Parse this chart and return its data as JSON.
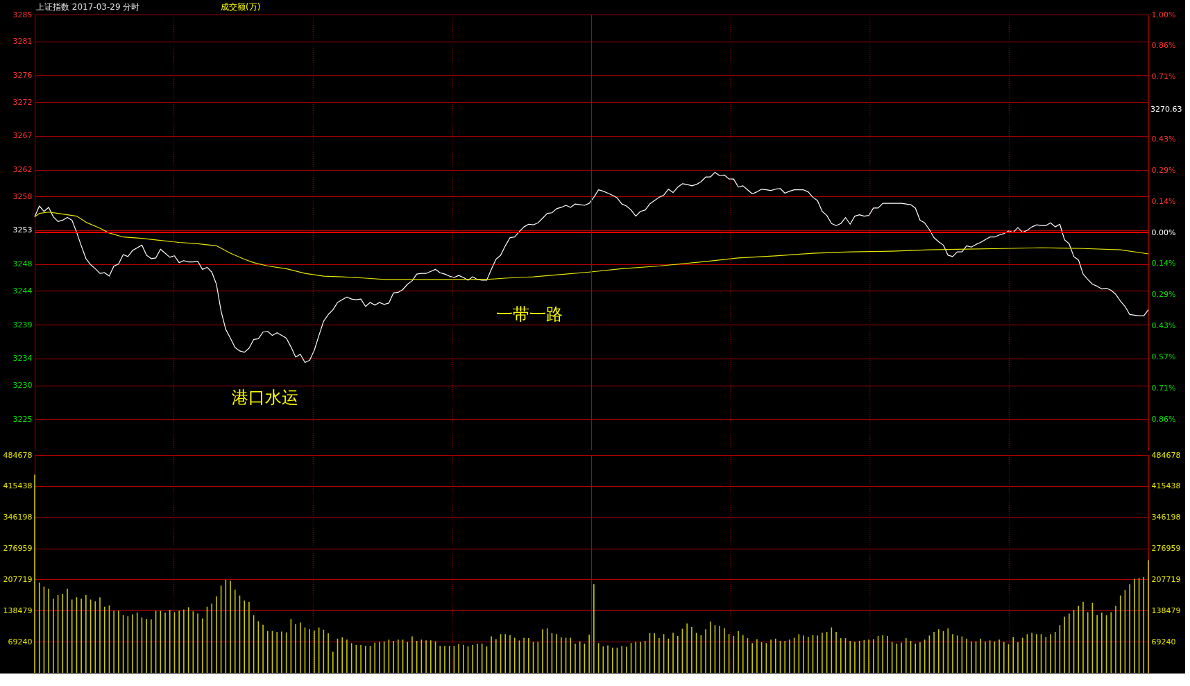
{
  "chart_data": [
    {
      "type": "line",
      "title": "上证指数  2017-03-29 分时",
      "categories": [
        null,
        null,
        null,
        null,
        null,
        null,
        null,
        null,
        null,
        null,
        null,
        null,
        null,
        null,
        null,
        null,
        null,
        null,
        null,
        null,
        null,
        null,
        null,
        null,
        null,
        null,
        null,
        null,
        null,
        null,
        null,
        null,
        null,
        null,
        null,
        null,
        null,
        null,
        null,
        null,
        null,
        null,
        null,
        null,
        null,
        null,
        null,
        null,
        null,
        null,
        null,
        null,
        null,
        null,
        null,
        null,
        null,
        null,
        null,
        null,
        null,
        null,
        null,
        null,
        null,
        null,
        null,
        null,
        null,
        null,
        null,
        null,
        null,
        null,
        null,
        null,
        null,
        null,
        null,
        null,
        null,
        null,
        null,
        null,
        null,
        null,
        null,
        null,
        null,
        null,
        null,
        null,
        null,
        null,
        null,
        null,
        null,
        null,
        null,
        null,
        null,
        null,
        null,
        null,
        null,
        null,
        null,
        null,
        null,
        null,
        null,
        null,
        null,
        null,
        null,
        null,
        null,
        null,
        null,
        null,
        null,
        null,
        null,
        null,
        null,
        null,
        null,
        null,
        null,
        null,
        null,
        null,
        null,
        null,
        null,
        null,
        null,
        null,
        null,
        null,
        null,
        null,
        null,
        null,
        null,
        null,
        null,
        null,
        null,
        null,
        null,
        null,
        null,
        null,
        null,
        null,
        null,
        null,
        null,
        null,
        null,
        null,
        null,
        null,
        null,
        null,
        null,
        null,
        null,
        null,
        null,
        null,
        null,
        null,
        null,
        null,
        null,
        null,
        null,
        null,
        null,
        null,
        null,
        null,
        null,
        null,
        null,
        null,
        null,
        null,
        null,
        null,
        null,
        null,
        null,
        null,
        null,
        null,
        null,
        null,
        null,
        null,
        null,
        null,
        null,
        null,
        null,
        null,
        null,
        null,
        null,
        null,
        null,
        null,
        null,
        null,
        null,
        null,
        null,
        null,
        null,
        null,
        null,
        null,
        null,
        null,
        null,
        null,
        null,
        null,
        null,
        null,
        null,
        null,
        null,
        null,
        null,
        null,
        null,
        null
      ],
      "series": [
        {
          "color": "#ffffff",
          "values": [
            3255.0,
            3256.6,
            3255.8,
            3256.4,
            3255.0,
            3254.3,
            3254.5,
            3254.9,
            3254.5,
            3252.7,
            3250.7,
            3248.8,
            3247.9,
            3247.3,
            3246.6,
            3246.7,
            3246.2,
            3247.7,
            3248.0,
            3249.4,
            3249.1,
            3250.0,
            3250.4,
            3250.8,
            3249.3,
            3248.8,
            3248.9,
            3250.2,
            3249.6,
            3249.0,
            3249.2,
            3248.2,
            3248.5,
            3248.3,
            3248.3,
            3248.4,
            3247.2,
            3247.5,
            3246.8,
            3245.0,
            3241.0,
            3238.3,
            3237.0,
            3235.6,
            3235.1,
            3234.9,
            3235.5,
            3236.8,
            3236.9,
            3237.9,
            3238.0,
            3237.4,
            3237.8,
            3237.4,
            3237.0,
            3235.7,
            3234.2,
            3234.6,
            3233.4,
            3233.7,
            3235.2,
            3237.4,
            3239.5,
            3240.5,
            3241.2,
            3242.3,
            3242.7,
            3243.1,
            3242.8,
            3242.7,
            3242.8,
            3241.7,
            3242.3,
            3241.9,
            3242.3,
            3242.0,
            3242.2,
            3243.7,
            3243.8,
            3244.2,
            3245.0,
            3245.5,
            3246.5,
            3246.6,
            3246.6,
            3246.9,
            3247.2,
            3246.7,
            3246.5,
            3246.2,
            3246.0,
            3246.3,
            3246.0,
            3245.6,
            3246.1,
            3245.7,
            3245.6,
            3245.6,
            3247.2,
            3248.7,
            3249.3,
            3250.7,
            3251.9,
            3252.0,
            3252.8,
            3253.5,
            3253.9,
            3253.8,
            3254.1,
            3254.8,
            3255.5,
            3255.6,
            3256.2,
            3256.4,
            3256.7,
            3256.4,
            3256.9,
            3256.8,
            3256.7,
            3257.0,
            3257.9,
            3259.0,
            3258.8,
            3258.5,
            3258.2,
            3257.8,
            3256.9,
            3256.6,
            3256.0,
            3255.1,
            3255.8,
            3256.0,
            3256.9,
            3257.4,
            3257.9,
            3258.2,
            3259.1,
            3258.6,
            3259.4,
            3259.9,
            3259.8,
            3259.6,
            3259.8,
            3260.2,
            3260.9,
            3260.9,
            3261.6,
            3261.1,
            3261.2,
            3260.6,
            3260.6,
            3259.4,
            3259.6,
            3259.0,
            3258.4,
            3258.7,
            3259.1,
            3259.0,
            3258.9,
            3259.1,
            3259.2,
            3258.5,
            3258.8,
            3259.0,
            3259.0,
            3259.0,
            3258.7,
            3257.9,
            3257.4,
            3255.8,
            3255.2,
            3254.0,
            3253.7,
            3254.0,
            3254.9,
            3253.9,
            3255.1,
            3255.3,
            3255.1,
            3255.2,
            3256.3,
            3256.3,
            3257.0,
            3257.0,
            3257.0,
            3257.0,
            3257.0,
            3256.9,
            3256.8,
            3256.3,
            3254.5,
            3254.1,
            3253.1,
            3251.9,
            3251.3,
            3250.8,
            3249.3,
            3249.1,
            3249.8,
            3249.8,
            3250.7,
            3250.5,
            3250.9,
            3251.2,
            3251.6,
            3252.0,
            3252.0,
            3252.3,
            3252.5,
            3252.9,
            3252.7,
            3253.4,
            3252.7,
            3253.0,
            3253.5,
            3253.8,
            3253.7,
            3253.7,
            3254.1,
            3253.5,
            3253.9,
            3251.6,
            3251.0,
            3249.1,
            3248.6,
            3246.5,
            3245.7,
            3245.0,
            3244.7,
            3244.3,
            3244.4,
            3244.1,
            3243.5,
            3242.5,
            3241.7,
            3240.5,
            3240.4,
            3240.3,
            3240.3,
            3241.2
          ]
        },
        {
          "color": "#e6e600",
          "values": [
            3255.0,
            3255.5,
            null,
            3255.7,
            null,
            3255.5,
            null,
            3255.3,
            null,
            3255.1,
            null,
            3254.2,
            null,
            null,
            3253.3,
            null,
            3252.6,
            null,
            null,
            3252.0,
            null,
            null,
            null,
            3251.8,
            null,
            null,
            null,
            3251.5,
            null,
            null,
            null,
            3251.2,
            null,
            null,
            null,
            3251.0,
            null,
            null,
            null,
            3250.7,
            null,
            null,
            3249.6,
            null,
            null,
            3248.7,
            null,
            3248.2,
            null,
            null,
            3247.7,
            null,
            null,
            null,
            3247.3,
            null,
            null,
            null,
            3246.6,
            null,
            null,
            null,
            3246.2,
            null,
            null,
            null,
            3246.1,
            null,
            null,
            null,
            null,
            3245.9,
            null,
            null,
            null,
            3245.7,
            null,
            null,
            null,
            null,
            null,
            3245.7,
            null,
            null,
            null,
            null,
            null,
            null,
            null,
            3245.7,
            null,
            null,
            null,
            null,
            null,
            null,
            null,
            3245.7,
            null,
            null,
            null,
            3245.9,
            null,
            null,
            null,
            null,
            null,
            3246.1,
            null,
            null,
            null,
            null,
            null,
            null,
            3246.5,
            null,
            null,
            null,
            null,
            3246.8,
            null,
            null,
            null,
            null,
            null,
            null,
            3247.3,
            null,
            null,
            null,
            null,
            null,
            null,
            null,
            3247.7,
            null,
            null,
            null,
            null,
            null,
            null,
            null,
            null,
            3248.3,
            null,
            null,
            null,
            null,
            null,
            null,
            null,
            3248.9,
            null,
            null,
            null,
            null,
            null,
            null,
            null,
            3249.2,
            null,
            null,
            null,
            null,
            null,
            null,
            null,
            3249.6,
            null,
            null,
            null,
            null,
            null,
            null,
            null,
            3249.8,
            null,
            null,
            null,
            null,
            null,
            null,
            null,
            null,
            3249.9,
            null,
            null,
            null,
            null,
            null,
            null,
            null,
            3250.1,
            null,
            null,
            null,
            null,
            null,
            null,
            null,
            3250.2,
            null,
            null,
            null,
            null,
            null,
            null,
            null,
            3250.3,
            null,
            null,
            null,
            null,
            null,
            null,
            null,
            3250.4,
            null,
            null,
            null,
            null,
            null,
            null,
            null,
            null,
            3250.3,
            null,
            null,
            null,
            null,
            null,
            null,
            null,
            3250.1,
            null,
            null,
            null,
            null,
            null,
            3249.5
          ]
        }
      ],
      "ylim": [
        3220.38,
        3285
      ],
      "yticks": [
        3285,
        3281,
        3276,
        3272,
        3267,
        3262,
        3258,
        3253,
        3248,
        3244,
        3239,
        3234,
        3230,
        3225
      ],
      "y2lim": [
        -1.0,
        1.0
      ],
      "y2ticks": [
        {
          "value": 1.0,
          "label": "1.00%"
        },
        {
          "value": 0.857,
          "label": "0.86%"
        },
        {
          "value": 0.714,
          "label": "0.71%"
        },
        {
          "value": 0.429,
          "label": "0.43%"
        },
        {
          "value": 0.286,
          "label": "0.29%"
        },
        {
          "value": 0.143,
          "label": "0.14%"
        },
        {
          "value": 0,
          "label": "0.00%"
        },
        {
          "value": -0.143,
          "label": "0.14%"
        },
        {
          "value": -0.286,
          "label": "0.29%"
        },
        {
          "value": -0.429,
          "label": "0.43%"
        },
        {
          "value": -0.571,
          "label": "0.57%"
        },
        {
          "value": -0.714,
          "label": "0.71%"
        },
        {
          "value": -0.857,
          "label": "0.86%"
        }
      ],
      "ref_lines": [
        {
          "axis": "y",
          "value": 3252.69,
          "color": "#ff0000"
        }
      ],
      "annotations": [
        "港口水运",
        "一带一路",
        "3270.63"
      ],
      "grid": true,
      "tick_labels": "y"
    },
    {
      "type": "bar",
      "title": "成交额(万)",
      "categories": [
        null,
        null,
        null,
        null,
        null,
        null,
        null,
        null,
        null,
        null,
        null,
        null,
        null,
        null,
        null,
        null,
        null,
        null,
        null,
        null,
        null,
        null,
        null,
        null,
        null,
        null,
        null,
        null,
        null,
        null,
        null,
        null,
        null,
        null,
        null,
        null,
        null,
        null,
        null,
        null,
        null,
        null,
        null,
        null,
        null,
        null,
        null,
        null,
        null,
        null,
        null,
        null,
        null,
        null,
        null,
        null,
        null,
        null,
        null,
        null,
        null,
        null,
        null,
        null,
        null,
        null,
        null,
        null,
        null,
        null,
        null,
        null,
        null,
        null,
        null,
        null,
        null,
        null,
        null,
        null,
        null,
        null,
        null,
        null,
        null,
        null,
        null,
        null,
        null,
        null,
        null,
        null,
        null,
        null,
        null,
        null,
        null,
        null,
        null,
        null,
        null,
        null,
        null,
        null,
        null,
        null,
        null,
        null,
        null,
        null,
        null,
        null,
        null,
        null,
        null,
        null,
        null,
        null,
        null,
        null,
        null,
        null,
        null,
        null,
        null,
        null,
        null,
        null,
        null,
        null,
        null,
        null,
        null,
        null,
        null,
        null,
        null,
        null,
        null,
        null,
        null,
        null,
        null,
        null,
        null,
        null,
        null,
        null,
        null,
        null,
        null,
        null,
        null,
        null,
        null,
        null,
        null,
        null,
        null,
        null,
        null,
        null,
        null,
        null,
        null,
        null,
        null,
        null,
        null,
        null,
        null,
        null,
        null,
        null,
        null,
        null,
        null,
        null,
        null,
        null,
        null,
        null,
        null,
        null,
        null,
        null,
        null,
        null,
        null,
        null,
        null,
        null,
        null,
        null,
        null,
        null,
        null,
        null,
        null,
        null,
        null,
        null,
        null,
        null,
        null,
        null,
        null,
        null,
        null,
        null,
        null,
        null,
        null,
        null,
        null,
        null,
        null,
        null,
        null,
        null,
        null,
        null,
        null,
        null,
        null,
        null,
        null,
        null,
        null,
        null,
        null,
        null,
        null,
        null,
        null,
        null,
        null,
        null,
        null,
        null
      ],
      "values": [
        441000,
        201000,
        192000,
        187000,
        165000,
        173000,
        176000,
        187000,
        163000,
        168000,
        165000,
        173000,
        163000,
        159000,
        168000,
        147000,
        150000,
        138000,
        138000,
        128000,
        126000,
        130000,
        134000,
        123000,
        120000,
        119000,
        138000,
        138000,
        134000,
        140000,
        135000,
        138000,
        141000,
        146000,
        137000,
        132000,
        121000,
        147000,
        154000,
        170000,
        194000,
        207000,
        205000,
        185000,
        172000,
        161000,
        158000,
        128000,
        115000,
        107000,
        93000,
        93000,
        91000,
        92000,
        90000,
        120000,
        108000,
        112000,
        101000,
        97000,
        94000,
        101000,
        96000,
        88000,
        47000,
        76000,
        79000,
        74000,
        66000,
        62000,
        62000,
        60000,
        60000,
        67000,
        69000,
        70000,
        74000,
        71000,
        74000,
        74000,
        69000,
        81000,
        71000,
        74000,
        72000,
        72000,
        70000,
        60000,
        60000,
        60000,
        60000,
        64000,
        62000,
        59000,
        62000,
        65000,
        65000,
        59000,
        81000,
        75000,
        86000,
        86000,
        84000,
        78000,
        72000,
        78000,
        77000,
        69000,
        69000,
        97000,
        99000,
        88000,
        86000,
        79000,
        78000,
        78000,
        65000,
        70000,
        65000,
        85000,
        197000,
        66000,
        59000,
        61000,
        56000,
        56000,
        60000,
        58000,
        66000,
        69000,
        69000,
        71000,
        88000,
        88000,
        77000,
        86000,
        76000,
        89000,
        82000,
        98000,
        110000,
        102000,
        89000,
        84000,
        97000,
        114000,
        106000,
        104000,
        99000,
        86000,
        82000,
        93000,
        84000,
        77000,
        66000,
        75000,
        68000,
        66000,
        74000,
        76000,
        71000,
        71000,
        74000,
        78000,
        86000,
        83000,
        80000,
        84000,
        83000,
        89000,
        91000,
        101000,
        91000,
        77000,
        77000,
        71000,
        69000,
        71000,
        73000,
        74000,
        75000,
        82000,
        84000,
        82000,
        69000,
        65000,
        67000,
        77000,
        71000,
        65000,
        68000,
        74000,
        83000,
        91000,
        97000,
        93000,
        99000,
        86000,
        83000,
        81000,
        76000,
        70000,
        70000,
        76000,
        70000,
        72000,
        70000,
        74000,
        69000,
        64000,
        80000,
        68000,
        78000,
        86000,
        89000,
        86000,
        86000,
        80000,
        86000,
        91000,
        106000,
        125000,
        132000,
        140000,
        149000,
        158000,
        135000,
        156000,
        128000,
        134000,
        128000,
        135000,
        149000,
        172000,
        184000,
        197000,
        209000,
        211000,
        213000,
        251000
      ],
      "color": "#c8c800",
      "ylim": [
        0,
        484678
      ],
      "yticks": [
        69240,
        138479,
        207719,
        276959,
        346198,
        415438,
        484678
      ],
      "y2lim": [
        0,
        484678
      ],
      "y2ticks": [
        69240,
        138479,
        207719,
        276959,
        346198,
        415438,
        484678
      ],
      "grid": true,
      "tick_labels": "y"
    }
  ]
}
